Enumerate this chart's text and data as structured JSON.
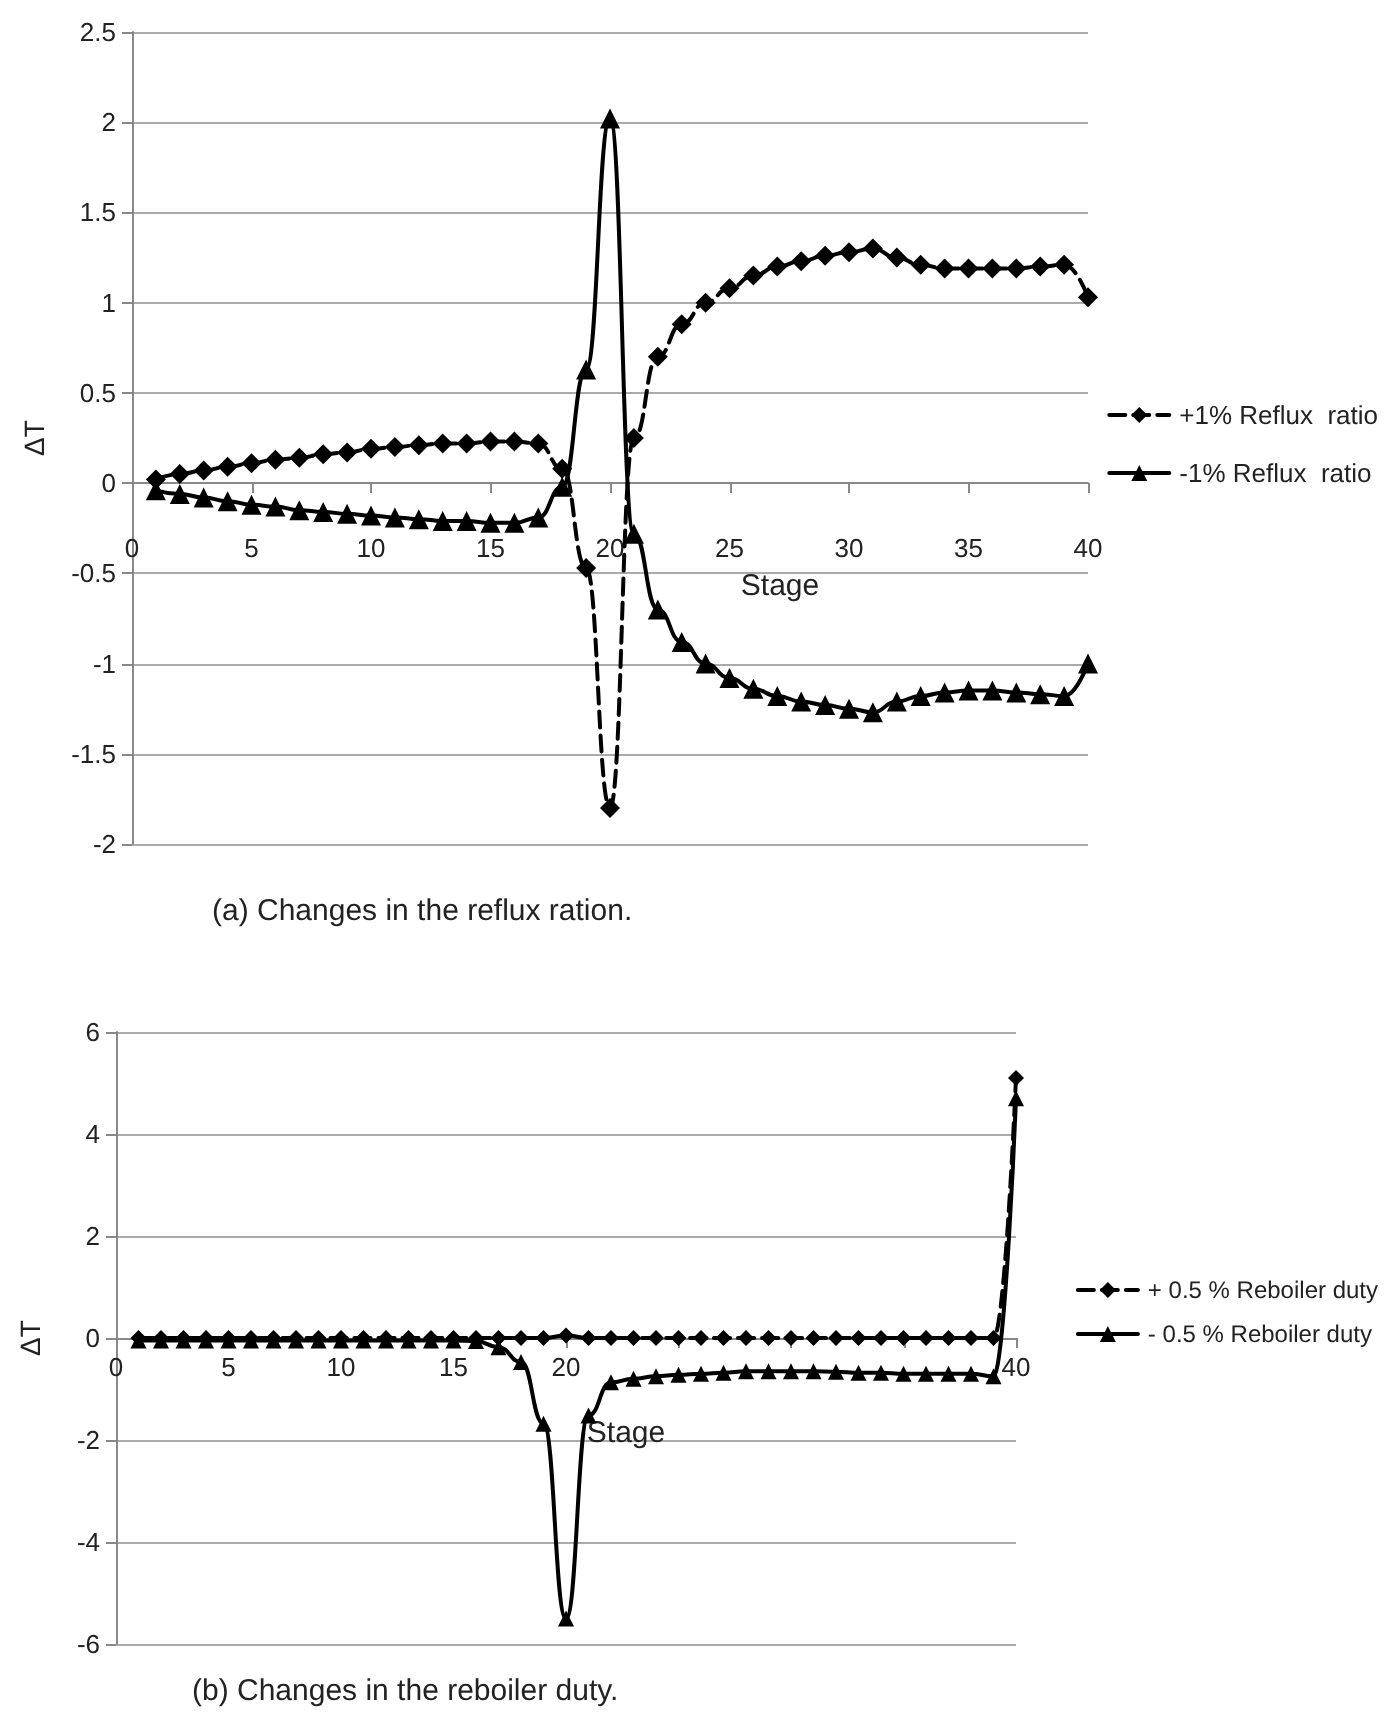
{
  "chart_data": [
    {
      "type": "line",
      "xlabel": "Stage",
      "ylabel": "ΔT",
      "x": [
        1,
        2,
        3,
        4,
        5,
        6,
        7,
        8,
        9,
        10,
        11,
        12,
        13,
        14,
        15,
        16,
        17,
        18,
        19,
        20,
        21,
        22,
        23,
        24,
        25,
        26,
        27,
        28,
        29,
        30,
        31,
        32,
        33,
        34,
        35,
        36,
        37,
        38,
        39,
        40
      ],
      "series": [
        {
          "name": "+1% Reflux  ratio",
          "color": "#000000",
          "marker": "diamond",
          "line_style": "dashed",
          "values": [
            0.02,
            0.05,
            0.07,
            0.09,
            0.11,
            0.13,
            0.14,
            0.16,
            0.17,
            0.19,
            0.2,
            0.21,
            0.22,
            0.22,
            0.23,
            0.23,
            0.22,
            0.08,
            -0.47,
            -1.8,
            0.25,
            0.7,
            0.88,
            1.0,
            1.08,
            1.15,
            1.2,
            1.23,
            1.26,
            1.28,
            1.3,
            1.25,
            1.21,
            1.19,
            1.19,
            1.19,
            1.19,
            1.2,
            1.21,
            1.03
          ]
        },
        {
          "name": "-1% Reflux  ratio",
          "color": "#000000",
          "marker": "triangle",
          "line_style": "solid",
          "values": [
            -0.04,
            -0.06,
            -0.08,
            -0.1,
            -0.12,
            -0.13,
            -0.15,
            -0.16,
            -0.17,
            -0.18,
            -0.19,
            -0.2,
            -0.21,
            -0.21,
            -0.22,
            -0.22,
            -0.19,
            -0.02,
            0.63,
            2.02,
            -0.28,
            -0.7,
            -0.88,
            -1.0,
            -1.08,
            -1.14,
            -1.18,
            -1.21,
            -1.23,
            -1.25,
            -1.27,
            -1.21,
            -1.18,
            -1.16,
            -1.15,
            -1.15,
            -1.16,
            -1.17,
            -1.18,
            -1.0
          ]
        }
      ],
      "xlim": [
        0,
        40
      ],
      "xticks": [
        0,
        5,
        10,
        15,
        20,
        25,
        30,
        35,
        40
      ],
      "ylim": [
        -2,
        2.5
      ],
      "yticks": [
        -2,
        -1.5,
        -1,
        -0.5,
        0,
        0.5,
        1,
        1.5,
        2,
        2.5
      ],
      "grid": "y",
      "legend": "right",
      "annotations": [
        "(a) Changes in the reflux ration."
      ]
    },
    {
      "type": "line",
      "xlabel": "Stage",
      "ylabel": "ΔT",
      "x": [
        1,
        2,
        3,
        4,
        5,
        6,
        7,
        8,
        9,
        10,
        11,
        12,
        13,
        14,
        15,
        16,
        17,
        18,
        19,
        20,
        21,
        22,
        23,
        24,
        25,
        26,
        27,
        28,
        29,
        30,
        31,
        32,
        33,
        34,
        35,
        36,
        37,
        38,
        39,
        40
      ],
      "series": [
        {
          "name": "+ 0.5 % Reboiler duty",
          "color": "#000000",
          "marker": "diamond",
          "line_style": "dashed",
          "values": [
            0,
            0,
            0,
            0,
            0,
            0,
            0,
            0,
            0,
            0,
            0,
            0,
            0,
            0,
            0,
            0,
            0,
            0,
            0,
            0.05,
            0,
            0,
            0,
            0,
            0,
            0,
            0,
            0,
            0,
            0,
            0,
            0,
            0,
            0,
            0,
            0,
            0,
            0,
            0,
            5.1
          ]
        },
        {
          "name": "- 0.5 % Reboiler duty",
          "color": "#000000",
          "marker": "triangle",
          "line_style": "solid",
          "values": [
            -0.05,
            -0.05,
            -0.05,
            -0.05,
            -0.05,
            -0.05,
            -0.05,
            -0.05,
            -0.05,
            -0.05,
            -0.05,
            -0.05,
            -0.05,
            -0.05,
            -0.05,
            -0.06,
            -0.18,
            -0.47,
            -1.68,
            -5.5,
            -1.52,
            -0.87,
            -0.8,
            -0.75,
            -0.72,
            -0.7,
            -0.68,
            -0.65,
            -0.65,
            -0.65,
            -0.65,
            -0.66,
            -0.68,
            -0.68,
            -0.7,
            -0.7,
            -0.7,
            -0.7,
            -0.75,
            4.7
          ]
        }
      ],
      "xlim": [
        0,
        40
      ],
      "xticks": [
        0,
        5,
        10,
        15,
        20,
        {
          "value": 25,
          "label": null
        },
        {
          "value": 30,
          "label": null
        },
        {
          "value": 35,
          "label": null
        },
        40
      ],
      "ylim": [
        -6,
        6
      ],
      "yticks": [
        -6,
        -4,
        -2,
        0,
        2,
        4,
        6
      ],
      "grid": "y",
      "legend": "right",
      "annotations": [
        "(b) Changes in the reboiler duty."
      ]
    }
  ]
}
